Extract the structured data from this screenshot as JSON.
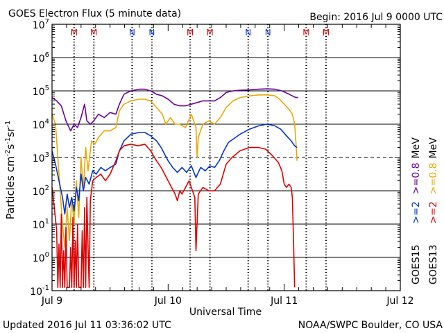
{
  "header": {
    "title": "GOES Electron Flux (5 minute data)",
    "begin": "Begin: 2016 Jul 9 0000 UTC"
  },
  "footer": {
    "updated": "Updated 2016 Jul 11 03:36:02 UTC",
    "credit": "NOAA/SWPC Boulder, CO USA"
  },
  "colors": {
    "goes15_2mev": "#0033cc",
    "goes15_08mev": "#660099",
    "goes13_2mev": "#dd0000",
    "goes13_08mev": "#e8a800",
    "marker_M": "#cc0000",
    "marker_N": "#0033cc"
  },
  "chart_data": {
    "type": "line",
    "title": "GOES Electron Flux (5 minute data)",
    "xlabel": "Universal Time",
    "ylabel_parts": {
      "base": "Particles cm",
      "e1": "-2",
      "m1": "s",
      "e2": "-1",
      "m2": "sr",
      "e3": "-1"
    },
    "x_unit": "days since 2016 Jul 9 0000 UTC",
    "xlim": [
      0,
      3
    ],
    "yscale": "log",
    "ylim_exponent": [
      -1,
      7
    ],
    "y_ticks": [
      {
        "base": "10",
        "exp": "7",
        "e": 7
      },
      {
        "base": "10",
        "exp": "6",
        "e": 6
      },
      {
        "base": "10",
        "exp": "5",
        "e": 5
      },
      {
        "base": "10",
        "exp": "4",
        "e": 4
      },
      {
        "base": "10",
        "exp": "3",
        "e": 3
      },
      {
        "base": "10",
        "exp": "2",
        "e": 2
      },
      {
        "base": "10",
        "exp": "1",
        "e": 1
      },
      {
        "base": "10",
        "exp": "0",
        "e": 0
      },
      {
        "base": "10",
        "exp": "-1",
        "e": -1
      }
    ],
    "x_ticks": [
      {
        "label": "Jul 9",
        "x": 0
      },
      {
        "label": "Jul 10",
        "x": 1
      },
      {
        "label": "Jul 11",
        "x": 2
      },
      {
        "label": "Jul 12",
        "x": 3
      }
    ],
    "threshold_exponent": 3,
    "local_time_markers": [
      {
        "label": "M",
        "x": 0.19,
        "type": "M"
      },
      {
        "label": "M",
        "x": 0.36,
        "type": "M"
      },
      {
        "label": "N",
        "x": 0.69,
        "type": "N"
      },
      {
        "label": "N",
        "x": 0.86,
        "type": "N"
      },
      {
        "label": "M",
        "x": 1.19,
        "type": "M"
      },
      {
        "label": "M",
        "x": 1.36,
        "type": "M"
      },
      {
        "label": "N",
        "x": 1.69,
        "type": "N"
      },
      {
        "label": "N",
        "x": 1.86,
        "type": "N"
      },
      {
        "label": "M",
        "x": 2.19,
        "type": "M"
      },
      {
        "label": "M",
        "x": 2.36,
        "type": "M"
      }
    ],
    "dashed_verticals": [
      0.19,
      0.36,
      0.69,
      0.86,
      1.19,
      1.36,
      1.69,
      1.86,
      2.19,
      2.36
    ],
    "legend": [
      {
        "satellite": "GOES15",
        "items": [
          {
            "label": ">=2",
            "color_key": "goes15_2mev"
          },
          {
            "label": ">=0.8",
            "color_key": "goes15_08mev"
          }
        ]
      },
      {
        "satellite": "GOES13",
        "items": [
          {
            "label": ">=2",
            "color_key": "goes13_2mev"
          },
          {
            "label": ">=0.8",
            "color_key": "goes13_08mev"
          }
        ]
      }
    ],
    "legend_unit": "MeV",
    "series": [
      {
        "name": "GOES15 >=0.8 MeV",
        "color_key": "goes15_08mev",
        "points": [
          [
            0.0,
            4.8
          ],
          [
            0.04,
            4.7
          ],
          [
            0.08,
            4.55
          ],
          [
            0.12,
            4.1
          ],
          [
            0.16,
            3.8
          ],
          [
            0.19,
            4.0
          ],
          [
            0.22,
            3.9
          ],
          [
            0.25,
            4.2
          ],
          [
            0.28,
            4.6
          ],
          [
            0.3,
            4.1
          ],
          [
            0.33,
            4.0
          ],
          [
            0.36,
            4.1
          ],
          [
            0.4,
            4.3
          ],
          [
            0.45,
            4.2
          ],
          [
            0.5,
            4.35
          ],
          [
            0.55,
            4.3
          ],
          [
            0.58,
            4.6
          ],
          [
            0.62,
            4.9
          ],
          [
            0.68,
            5.0
          ],
          [
            0.75,
            5.05
          ],
          [
            0.8,
            5.05
          ],
          [
            0.85,
            5.0
          ],
          [
            0.9,
            4.9
          ],
          [
            0.95,
            4.85
          ],
          [
            1.0,
            4.75
          ],
          [
            1.05,
            4.6
          ],
          [
            1.1,
            4.55
          ],
          [
            1.15,
            4.55
          ],
          [
            1.2,
            4.6
          ],
          [
            1.25,
            4.65
          ],
          [
            1.3,
            4.7
          ],
          [
            1.35,
            4.7
          ],
          [
            1.4,
            4.7
          ],
          [
            1.45,
            4.8
          ],
          [
            1.5,
            4.95
          ],
          [
            1.56,
            5.0
          ],
          [
            1.62,
            5.02
          ],
          [
            1.7,
            5.03
          ],
          [
            1.78,
            5.05
          ],
          [
            1.85,
            5.06
          ],
          [
            1.92,
            5.05
          ],
          [
            1.98,
            5.0
          ],
          [
            2.03,
            4.92
          ],
          [
            2.07,
            4.85
          ],
          [
            2.1,
            4.8
          ],
          [
            2.12,
            4.8
          ]
        ]
      },
      {
        "name": "GOES13 >=0.8 MeV",
        "color_key": "goes13_08mev",
        "points": [
          [
            0.0,
            4.3
          ],
          [
            0.03,
            4.0
          ],
          [
            0.05,
            3.0
          ],
          [
            0.07,
            2.0
          ],
          [
            0.09,
            1.0
          ],
          [
            0.11,
            0.3
          ],
          [
            0.13,
            1.5
          ],
          [
            0.15,
            0.5
          ],
          [
            0.17,
            1.8
          ],
          [
            0.19,
            1.0
          ],
          [
            0.21,
            2.3
          ],
          [
            0.23,
            1.2
          ],
          [
            0.25,
            3.0
          ],
          [
            0.27,
            2.0
          ],
          [
            0.29,
            3.3
          ],
          [
            0.31,
            2.6
          ],
          [
            0.34,
            3.5
          ],
          [
            0.37,
            3.4
          ],
          [
            0.4,
            3.6
          ],
          [
            0.45,
            3.8
          ],
          [
            0.5,
            3.8
          ],
          [
            0.55,
            3.9
          ],
          [
            0.58,
            4.4
          ],
          [
            0.62,
            4.6
          ],
          [
            0.68,
            4.7
          ],
          [
            0.75,
            4.75
          ],
          [
            0.8,
            4.75
          ],
          [
            0.85,
            4.7
          ],
          [
            0.9,
            4.5
          ],
          [
            0.95,
            4.3
          ],
          [
            0.98,
            4.0
          ],
          [
            1.02,
            4.2
          ],
          [
            1.06,
            4.0
          ],
          [
            1.1,
            4.0
          ],
          [
            1.15,
            3.9
          ],
          [
            1.2,
            4.3
          ],
          [
            1.24,
            3.9
          ],
          [
            1.25,
            3.0
          ],
          [
            1.26,
            3.6
          ],
          [
            1.3,
            4.0
          ],
          [
            1.35,
            4.1
          ],
          [
            1.4,
            4.0
          ],
          [
            1.45,
            4.2
          ],
          [
            1.5,
            4.5
          ],
          [
            1.56,
            4.7
          ],
          [
            1.62,
            4.8
          ],
          [
            1.7,
            4.85
          ],
          [
            1.78,
            4.88
          ],
          [
            1.86,
            4.88
          ],
          [
            1.92,
            4.85
          ],
          [
            1.96,
            4.75
          ],
          [
            2.0,
            4.6
          ],
          [
            2.04,
            4.45
          ],
          [
            2.07,
            4.3
          ],
          [
            2.09,
            4.0
          ],
          [
            2.1,
            3.5
          ],
          [
            2.11,
            2.9
          ]
        ]
      },
      {
        "name": "GOES15 >=2 MeV",
        "color_key": "goes15_2mev",
        "points": [
          [
            0.0,
            3.2
          ],
          [
            0.03,
            2.8
          ],
          [
            0.06,
            2.3
          ],
          [
            0.09,
            1.8
          ],
          [
            0.11,
            1.3
          ],
          [
            0.13,
            1.9
          ],
          [
            0.15,
            1.5
          ],
          [
            0.17,
            1.8
          ],
          [
            0.19,
            1.4
          ],
          [
            0.21,
            2.1
          ],
          [
            0.23,
            1.7
          ],
          [
            0.25,
            2.5
          ],
          [
            0.27,
            2.0
          ],
          [
            0.29,
            2.4
          ],
          [
            0.32,
            2.2
          ],
          [
            0.35,
            2.6
          ],
          [
            0.38,
            2.5
          ],
          [
            0.42,
            2.7
          ],
          [
            0.46,
            2.6
          ],
          [
            0.5,
            2.7
          ],
          [
            0.55,
            2.8
          ],
          [
            0.58,
            3.2
          ],
          [
            0.62,
            3.5
          ],
          [
            0.68,
            3.7
          ],
          [
            0.75,
            3.75
          ],
          [
            0.8,
            3.75
          ],
          [
            0.85,
            3.65
          ],
          [
            0.9,
            3.5
          ],
          [
            0.94,
            3.3
          ],
          [
            0.97,
            3.1
          ],
          [
            1.0,
            2.9
          ],
          [
            1.04,
            2.7
          ],
          [
            1.08,
            2.55
          ],
          [
            1.12,
            2.7
          ],
          [
            1.16,
            2.55
          ],
          [
            1.2,
            2.75
          ],
          [
            1.24,
            2.4
          ],
          [
            1.28,
            2.7
          ],
          [
            1.32,
            2.6
          ],
          [
            1.36,
            2.75
          ],
          [
            1.4,
            2.7
          ],
          [
            1.44,
            2.9
          ],
          [
            1.48,
            3.2
          ],
          [
            1.52,
            3.45
          ],
          [
            1.56,
            3.55
          ],
          [
            1.62,
            3.7
          ],
          [
            1.7,
            3.85
          ],
          [
            1.78,
            3.95
          ],
          [
            1.85,
            4.0
          ],
          [
            1.92,
            3.95
          ],
          [
            1.97,
            3.85
          ],
          [
            2.02,
            3.65
          ],
          [
            2.06,
            3.5
          ],
          [
            2.09,
            3.35
          ],
          [
            2.11,
            3.3
          ]
        ]
      },
      {
        "name": "GOES13 >=2 MeV",
        "color_key": "goes13_2mev",
        "points": [
          [
            0.0,
            2.1
          ],
          [
            0.02,
            1.5
          ],
          [
            0.04,
            0.8
          ],
          [
            0.05,
            -0.9
          ],
          [
            0.06,
            0.4
          ],
          [
            0.07,
            -0.9
          ],
          [
            0.08,
            1.3
          ],
          [
            0.09,
            -0.9
          ],
          [
            0.1,
            0.2
          ],
          [
            0.11,
            -0.9
          ],
          [
            0.12,
            0.9
          ],
          [
            0.13,
            -0.9
          ],
          [
            0.15,
            -0.9
          ],
          [
            0.16,
            0.3
          ],
          [
            0.17,
            -0.9
          ],
          [
            0.18,
            1.2
          ],
          [
            0.19,
            -0.9
          ],
          [
            0.2,
            0.5
          ],
          [
            0.21,
            -0.9
          ],
          [
            0.22,
            1.0
          ],
          [
            0.23,
            -0.9
          ],
          [
            0.25,
            -0.9
          ],
          [
            0.26,
            0.8
          ],
          [
            0.27,
            -0.9
          ],
          [
            0.28,
            1.5
          ],
          [
            0.29,
            -0.9
          ],
          [
            0.3,
            1.8
          ],
          [
            0.31,
            0.3
          ],
          [
            0.32,
            -0.9
          ],
          [
            0.33,
            1.7
          ],
          [
            0.35,
            2.3
          ],
          [
            0.38,
            2.4
          ],
          [
            0.42,
            2.5
          ],
          [
            0.46,
            2.3
          ],
          [
            0.5,
            2.5
          ],
          [
            0.55,
            2.9
          ],
          [
            0.58,
            3.2
          ],
          [
            0.62,
            3.35
          ],
          [
            0.68,
            3.4
          ],
          [
            0.74,
            3.35
          ],
          [
            0.8,
            3.4
          ],
          [
            0.85,
            3.2
          ],
          [
            0.9,
            2.9
          ],
          [
            0.94,
            2.7
          ],
          [
            0.97,
            2.5
          ],
          [
            1.0,
            2.3
          ],
          [
            1.03,
            2.1
          ],
          [
            1.06,
            1.9
          ],
          [
            1.08,
            1.7
          ],
          [
            1.1,
            2.0
          ],
          [
            1.12,
            1.9
          ],
          [
            1.15,
            2.1
          ],
          [
            1.18,
            2.3
          ],
          [
            1.21,
            2.0
          ],
          [
            1.23,
            1.8
          ],
          [
            1.24,
            0.2
          ],
          [
            1.26,
            1.9
          ],
          [
            1.3,
            2.1
          ],
          [
            1.35,
            2.0
          ],
          [
            1.4,
            2.0
          ],
          [
            1.45,
            2.2
          ],
          [
            1.5,
            2.8
          ],
          [
            1.55,
            3.0
          ],
          [
            1.62,
            3.2
          ],
          [
            1.7,
            3.3
          ],
          [
            1.78,
            3.3
          ],
          [
            1.84,
            3.25
          ],
          [
            1.9,
            3.05
          ],
          [
            1.95,
            2.85
          ],
          [
            1.98,
            2.6
          ],
          [
            2.0,
            2.2
          ],
          [
            2.02,
            2.1
          ],
          [
            2.04,
            2.2
          ],
          [
            2.06,
            2.1
          ],
          [
            2.07,
            1.8
          ],
          [
            2.08,
            0.5
          ],
          [
            2.09,
            -0.9
          ]
        ]
      }
    ]
  }
}
